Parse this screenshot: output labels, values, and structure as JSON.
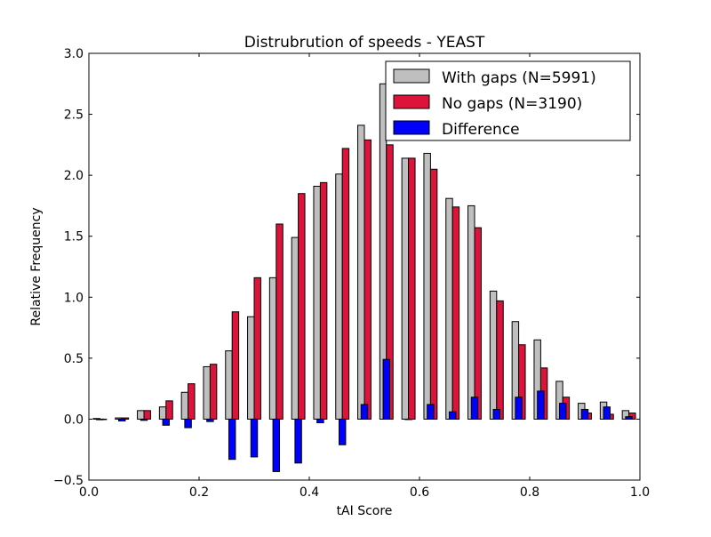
{
  "chart_data": {
    "type": "bar",
    "title": "Distrubrution of speeds - YEAST",
    "xlabel": "tAI Score",
    "ylabel": "Relative Frequency",
    "xlim": [
      0.0,
      1.0
    ],
    "ylim": [
      -0.5,
      3.0
    ],
    "x_ticks": [
      "0.0",
      "0.2",
      "0.4",
      "0.6",
      "0.8",
      "1.0"
    ],
    "y_ticks": [
      "−0.5",
      "0.0",
      "0.5",
      "1.0",
      "1.5",
      "2.0",
      "2.5",
      "3.0"
    ],
    "legend_position": "top-right",
    "bin_centers": [
      0.02,
      0.06,
      0.1,
      0.14,
      0.18,
      0.22,
      0.26,
      0.3,
      0.34,
      0.38,
      0.42,
      0.46,
      0.5,
      0.54,
      0.58,
      0.62,
      0.66,
      0.7,
      0.74,
      0.78,
      0.82,
      0.86,
      0.9,
      0.94,
      0.98
    ],
    "series": [
      {
        "name": "With gaps (N=5991)",
        "color": "#bfbfbf",
        "values": [
          0.005,
          0.01,
          0.07,
          0.1,
          0.22,
          0.43,
          0.56,
          0.84,
          1.16,
          1.49,
          1.91,
          2.01,
          2.41,
          2.75,
          2.14,
          2.18,
          1.81,
          1.75,
          1.05,
          0.8,
          0.65,
          0.31,
          0.13,
          0.14,
          0.07
        ]
      },
      {
        "name": "No gaps (N=3190)",
        "color": "#dc143c",
        "values": [
          0.0,
          0.01,
          0.07,
          0.15,
          0.29,
          0.45,
          0.88,
          1.16,
          1.6,
          1.85,
          1.94,
          2.22,
          2.29,
          2.25,
          2.14,
          2.05,
          1.74,
          1.57,
          0.97,
          0.61,
          0.42,
          0.18,
          0.05,
          0.04,
          0.05
        ]
      },
      {
        "name": "Difference",
        "color": "#0000ff",
        "values": [
          -0.005,
          -0.015,
          -0.01,
          -0.05,
          -0.07,
          -0.02,
          -0.33,
          -0.31,
          -0.43,
          -0.36,
          -0.03,
          -0.21,
          0.12,
          0.49,
          0.0,
          0.12,
          0.06,
          0.18,
          0.08,
          0.18,
          0.23,
          0.13,
          0.08,
          0.1,
          0.02
        ]
      }
    ]
  }
}
